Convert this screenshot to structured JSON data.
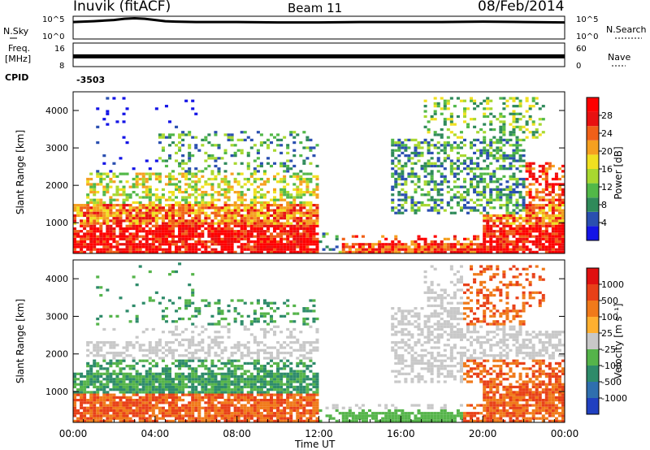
{
  "header": {
    "station": "Inuvik (fitACF)",
    "beam": "Beam 11",
    "date": "08/Feb/2014"
  },
  "left_labels": {
    "nsky": "N.Sky",
    "freq_line1": "Freq.",
    "freq_line2": "[MHz]",
    "cpid": "CPID"
  },
  "right_labels": {
    "nsearch": "N.Search",
    "nave": "Nave"
  },
  "cpid_value": "-3503",
  "x_axis": {
    "title": "Time UT",
    "ticks": [
      "00:00",
      "04:00",
      "08:00",
      "12:00",
      "16:00",
      "20:00",
      "00:00"
    ]
  },
  "colors": {
    "noise_line": "#000000",
    "freq_line": "#000000",
    "missing": "#ffffff"
  },
  "chart_data": [
    {
      "type": "line",
      "name": "noise",
      "left_axis_ticks": [
        "10^5",
        "10^0"
      ],
      "right_axis_ticks": [
        "10^5",
        "10^0"
      ],
      "x_hours": [
        0,
        1,
        2,
        2.5,
        3,
        3.5,
        4,
        4.5,
        5,
        6,
        8,
        10,
        12,
        14,
        16,
        18,
        20,
        22,
        24
      ],
      "values_log10": [
        4.1,
        4.3,
        4.6,
        4.9,
        5.0,
        4.9,
        4.6,
        4.3,
        4.2,
        4.1,
        4.1,
        4.0,
        4.0,
        4.1,
        4.1,
        4.1,
        4.2,
        4.1,
        4.0
      ]
    },
    {
      "type": "line",
      "name": "frequency",
      "left_axis_ticks": [
        "16",
        "8"
      ],
      "right_axis_ticks": [
        "60",
        "0"
      ],
      "x_hours": [
        0,
        24
      ],
      "values_mhz": [
        11.5,
        11.5
      ]
    },
    {
      "type": "heatmap",
      "name": "power",
      "ylabel": "Slant Range [km]",
      "yticks": [
        1000,
        2000,
        3000,
        4000
      ],
      "ylim": [
        180,
        4500
      ],
      "xlim_hours": [
        0,
        24
      ],
      "colorbar": {
        "label": "Power [dB]",
        "ticks": [
          "28",
          "24",
          "20",
          "16",
          "12",
          "8",
          "4"
        ],
        "colors": [
          "#1414e6",
          "#2a4fb0",
          "#2f8a5a",
          "#52b848",
          "#a8d830",
          "#f0e020",
          "#f5a020",
          "#f06018",
          "#e81010",
          "#ff0000"
        ]
      }
    },
    {
      "type": "heatmap",
      "name": "velocity",
      "ylabel": "Slant Range [km]",
      "yticks": [
        1000,
        2000,
        3000,
        4000
      ],
      "ylim": [
        180,
        4500
      ],
      "xlim_hours": [
        0,
        24
      ],
      "colorbar": {
        "label": "Velocity [m s^-1]",
        "ticks": [
          "1000",
          "500",
          "100",
          "25",
          "-25",
          "-100",
          "-500",
          "-1000"
        ],
        "colors": [
          "#2040c0",
          "#2f6fae",
          "#2e8b6a",
          "#55b44a",
          "#c8c8c8",
          "#ffb030",
          "#f07a1a",
          "#e84018",
          "#e01010"
        ]
      }
    }
  ]
}
